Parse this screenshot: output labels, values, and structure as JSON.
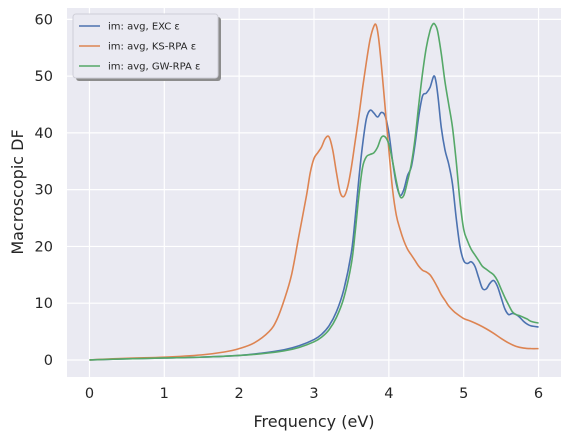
{
  "chart_data": {
    "type": "line",
    "title": "",
    "xlabel": "Frequency (eV)",
    "ylabel": "Macroscopic DF",
    "xlim": [
      -0.3,
      6.3
    ],
    "ylim": [
      -3,
      62
    ],
    "xticks": [
      "0",
      "1",
      "2",
      "3",
      "4",
      "5",
      "6"
    ],
    "yticks": [
      "0",
      "10",
      "20",
      "30",
      "40",
      "50",
      "60"
    ],
    "grid": true,
    "legend_position": "top-left",
    "series": [
      {
        "name": "im: avg, EXC ε",
        "color": "#4c72b0",
        "x": [
          0,
          0.5,
          1.0,
          1.5,
          2.0,
          2.3,
          2.6,
          2.8,
          3.0,
          3.1,
          3.2,
          3.3,
          3.4,
          3.5,
          3.55,
          3.6,
          3.65,
          3.7,
          3.75,
          3.8,
          3.85,
          3.9,
          3.95,
          4.0,
          4.05,
          4.1,
          4.15,
          4.2,
          4.25,
          4.3,
          4.35,
          4.4,
          4.45,
          4.5,
          4.55,
          4.6,
          4.63,
          4.66,
          4.7,
          4.75,
          4.8,
          4.85,
          4.9,
          4.95,
          5.0,
          5.05,
          5.1,
          5.15,
          5.2,
          5.25,
          5.3,
          5.35,
          5.4,
          5.45,
          5.5,
          5.55,
          5.6,
          5.65,
          5.7,
          5.75,
          5.8,
          5.85,
          5.9,
          6.0
        ],
        "values": [
          0.0,
          0.2,
          0.35,
          0.5,
          0.8,
          1.2,
          1.8,
          2.5,
          3.6,
          4.5,
          6.0,
          8.5,
          12.5,
          19.0,
          25.0,
          32.0,
          38.0,
          42.5,
          44.0,
          43.5,
          42.8,
          43.6,
          43.0,
          40.0,
          35.0,
          31.0,
          29.0,
          30.0,
          32.5,
          34.0,
          38.0,
          43.0,
          46.5,
          47.0,
          48.0,
          50.0,
          49.0,
          46.0,
          41.0,
          37.0,
          34.5,
          31.0,
          25.0,
          20.0,
          17.5,
          17.0,
          17.3,
          16.5,
          14.5,
          12.6,
          12.5,
          13.5,
          14.0,
          13.0,
          11.0,
          9.0,
          8.0,
          8.2,
          8.0,
          7.5,
          6.8,
          6.3,
          6.0,
          5.8
        ]
      },
      {
        "name": "im: avg, KS-RPA ε",
        "color": "#dd8452",
        "x": [
          0,
          0.5,
          1.0,
          1.5,
          1.8,
          2.0,
          2.2,
          2.4,
          2.5,
          2.6,
          2.7,
          2.8,
          2.9,
          2.95,
          3.0,
          3.05,
          3.1,
          3.15,
          3.2,
          3.25,
          3.3,
          3.35,
          3.4,
          3.45,
          3.5,
          3.55,
          3.6,
          3.65,
          3.7,
          3.75,
          3.8,
          3.83,
          3.86,
          3.9,
          3.95,
          4.0,
          4.05,
          4.1,
          4.15,
          4.2,
          4.25,
          4.3,
          4.35,
          4.4,
          4.45,
          4.5,
          4.55,
          4.6,
          4.65,
          4.7,
          4.75,
          4.8,
          4.85,
          4.9,
          5.0,
          5.1,
          5.2,
          5.3,
          5.4,
          5.5,
          5.6,
          5.7,
          5.8,
          5.9,
          6.0
        ],
        "values": [
          0.0,
          0.3,
          0.5,
          0.9,
          1.4,
          2.0,
          3.0,
          5.0,
          7.0,
          10.5,
          15.0,
          22.0,
          29.0,
          33.0,
          35.5,
          36.5,
          37.5,
          39.0,
          39.3,
          37.0,
          33.0,
          29.5,
          28.8,
          30.5,
          34.0,
          38.5,
          43.0,
          48.0,
          52.5,
          56.5,
          58.8,
          59.0,
          57.0,
          52.0,
          44.5,
          37.0,
          30.0,
          25.5,
          23.0,
          21.0,
          19.5,
          18.5,
          17.5,
          16.5,
          15.8,
          15.5,
          15.0,
          14.0,
          12.8,
          11.5,
          10.5,
          9.5,
          8.8,
          8.2,
          7.3,
          6.8,
          6.2,
          5.5,
          4.7,
          3.8,
          3.0,
          2.4,
          2.1,
          2.0,
          2.0
        ]
      },
      {
        "name": "im: avg, GW-RPA ε",
        "color": "#55a868",
        "x": [
          0,
          0.5,
          1.0,
          1.5,
          2.0,
          2.3,
          2.6,
          2.8,
          3.0,
          3.1,
          3.2,
          3.3,
          3.4,
          3.5,
          3.55,
          3.6,
          3.65,
          3.7,
          3.75,
          3.8,
          3.85,
          3.9,
          3.95,
          4.0,
          4.05,
          4.1,
          4.15,
          4.2,
          4.25,
          4.3,
          4.35,
          4.4,
          4.45,
          4.5,
          4.55,
          4.58,
          4.61,
          4.65,
          4.7,
          4.75,
          4.8,
          4.85,
          4.9,
          4.95,
          5.0,
          5.05,
          5.1,
          5.15,
          5.2,
          5.25,
          5.3,
          5.35,
          5.4,
          5.45,
          5.5,
          5.55,
          5.6,
          5.65,
          5.7,
          5.75,
          5.8,
          5.85,
          5.9,
          6.0
        ],
        "values": [
          0.0,
          0.2,
          0.35,
          0.5,
          0.8,
          1.1,
          1.6,
          2.2,
          3.2,
          4.0,
          5.3,
          7.5,
          11.0,
          17.0,
          22.5,
          29.0,
          34.0,
          35.8,
          36.2,
          36.5,
          37.5,
          39.2,
          39.3,
          38.0,
          35.0,
          31.5,
          28.8,
          29.0,
          31.5,
          34.5,
          39.0,
          45.0,
          50.5,
          55.0,
          58.0,
          59.0,
          59.2,
          58.0,
          54.0,
          49.0,
          45.0,
          41.0,
          35.0,
          28.0,
          23.0,
          21.0,
          19.5,
          18.5,
          17.5,
          16.5,
          16.0,
          15.5,
          15.0,
          14.0,
          12.5,
          11.0,
          9.7,
          8.5,
          8.0,
          7.8,
          7.5,
          7.2,
          6.8,
          6.5
        ]
      }
    ]
  }
}
